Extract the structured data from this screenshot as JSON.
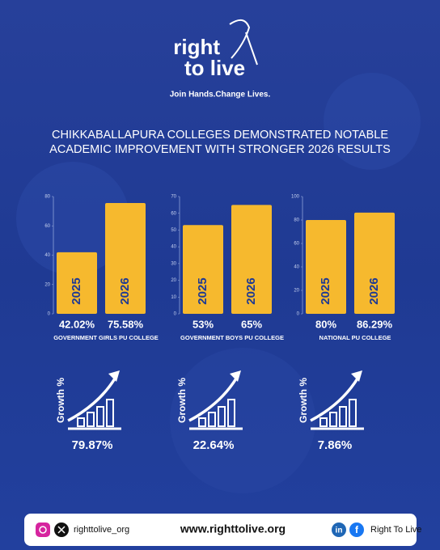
{
  "header": {
    "logo_line1": "right",
    "logo_line2": "to live",
    "tagline": "Join Hands.Change Lives.",
    "title_lines": [
      "CHIKKABALLAPURA COLLEGES DEMONSTRATED NOTABLE",
      "ACADEMIC IMPROVEMENT WITH STRONGER 2026 RESULTS"
    ]
  },
  "chart_data": [
    {
      "type": "bar",
      "xlabel": "GOVERNMENT GIRLS PU COLLEGE",
      "categories": [
        "2025",
        "2026"
      ],
      "values": [
        42.02,
        75.58
      ],
      "value_labels": [
        "42.02%",
        "75.58%"
      ],
      "color": "#f6b92e",
      "ylim": [
        0,
        80
      ],
      "yticks": [
        0,
        20,
        40,
        60,
        80
      ]
    },
    {
      "type": "bar",
      "xlabel": "GOVERNMENT BOYS PU COLLEGE",
      "categories": [
        "2025",
        "2026"
      ],
      "values": [
        53,
        65
      ],
      "value_labels": [
        "53%",
        "65%"
      ],
      "color": "#f6b92e",
      "ylim": [
        0,
        70
      ],
      "yticks": [
        0,
        10,
        20,
        30,
        40,
        50,
        60,
        70
      ]
    },
    {
      "type": "bar",
      "xlabel": "NATIONAL PU COLLEGE",
      "categories": [
        "2025",
        "2026"
      ],
      "values": [
        80,
        86.29
      ],
      "value_labels": [
        "80%",
        "86.29%"
      ],
      "color": "#f6b92e",
      "ylim": [
        0,
        100
      ],
      "yticks": [
        0,
        20,
        40,
        60,
        80,
        100
      ]
    }
  ],
  "growth": [
    {
      "label": "Growth %",
      "value": "79.87%"
    },
    {
      "label": "Growth %",
      "value": "22.64%"
    },
    {
      "label": "Growth %",
      "value": "7.86%"
    }
  ],
  "footer": {
    "social_handle": "righttolive_org",
    "website": "www.righttolive.org",
    "linkedin_icon": "in",
    "facebook_icon": "f",
    "facebook_name": "Right To Live"
  }
}
